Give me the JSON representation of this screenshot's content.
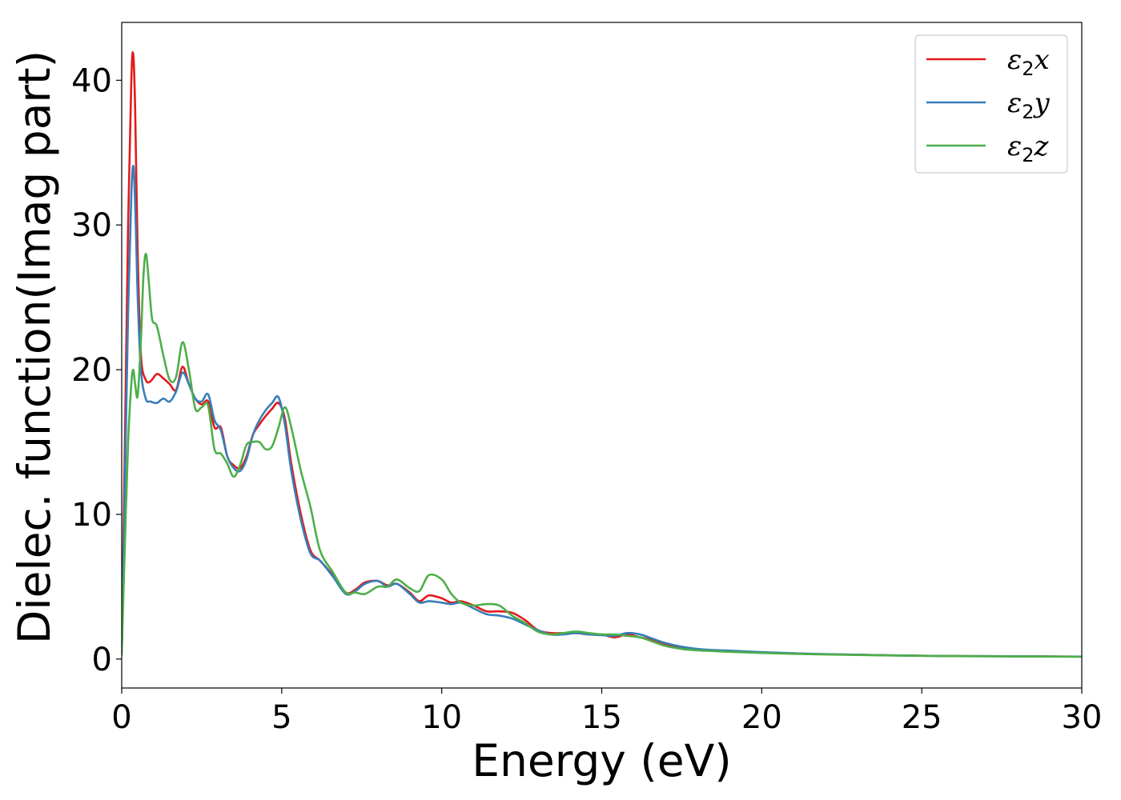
{
  "chart_data": {
    "type": "line",
    "title": "",
    "xlabel": "Energy (eV)",
    "ylabel": "Dielec. function(Imag part)",
    "xlim": [
      0,
      30
    ],
    "ylim": [
      -2,
      44
    ],
    "xticks": [
      0,
      5,
      10,
      15,
      20,
      25,
      30
    ],
    "yticks": [
      0,
      10,
      20,
      30,
      40
    ],
    "grid": false,
    "legend_position": "top-right",
    "series": [
      {
        "name": "ε2x",
        "legend": {
          "base": "ε",
          "sub": "2",
          "var": "x"
        },
        "color": "#e41a1c",
        "x": [
          0.0,
          0.1,
          0.2,
          0.3,
          0.36,
          0.42,
          0.5,
          0.6,
          0.75,
          0.9,
          1.1,
          1.3,
          1.5,
          1.7,
          1.9,
          2.1,
          2.3,
          2.5,
          2.7,
          2.9,
          3.1,
          3.3,
          3.5,
          3.7,
          3.9,
          4.1,
          4.3,
          4.5,
          4.7,
          4.9,
          5.1,
          5.3,
          5.6,
          5.9,
          6.2,
          6.6,
          7.0,
          7.3,
          7.6,
          8.0,
          8.3,
          8.6,
          9.0,
          9.3,
          9.6,
          10.0,
          10.3,
          10.6,
          11.0,
          11.4,
          11.8,
          12.2,
          12.6,
          13.0,
          13.4,
          13.8,
          14.2,
          14.6,
          15.0,
          15.4,
          15.8,
          16.2,
          16.6,
          17.0,
          17.5,
          18.0,
          18.5,
          19.0,
          20.0,
          21.0,
          22.0,
          23.0,
          24.0,
          25.0,
          26.0,
          27.0,
          28.0,
          29.0,
          30.0
        ],
        "y": [
          0.5,
          15.0,
          30.0,
          40.0,
          41.8,
          38.0,
          28.0,
          21.0,
          19.3,
          19.2,
          19.7,
          19.4,
          19.0,
          18.6,
          20.2,
          19.0,
          18.0,
          17.6,
          17.8,
          16.0,
          16.0,
          14.0,
          13.4,
          13.2,
          14.0,
          15.5,
          16.2,
          16.8,
          17.3,
          17.7,
          16.6,
          13.5,
          10.0,
          7.5,
          6.8,
          5.8,
          4.6,
          4.8,
          5.3,
          5.4,
          5.1,
          5.2,
          4.6,
          4.0,
          4.4,
          4.2,
          3.9,
          4.0,
          3.7,
          3.3,
          3.3,
          3.2,
          2.7,
          2.0,
          1.8,
          1.8,
          1.8,
          1.7,
          1.7,
          1.5,
          1.7,
          1.5,
          1.3,
          1.0,
          0.8,
          0.65,
          0.6,
          0.55,
          0.45,
          0.38,
          0.33,
          0.3,
          0.26,
          0.23,
          0.21,
          0.2,
          0.19,
          0.18,
          0.17
        ]
      },
      {
        "name": "ε2y",
        "legend": {
          "base": "ε",
          "sub": "2",
          "var": "y"
        },
        "color": "#377eb8",
        "x": [
          0.0,
          0.1,
          0.2,
          0.3,
          0.37,
          0.44,
          0.5,
          0.6,
          0.75,
          0.9,
          1.1,
          1.3,
          1.5,
          1.7,
          1.9,
          2.1,
          2.3,
          2.5,
          2.7,
          2.9,
          3.1,
          3.3,
          3.5,
          3.7,
          3.9,
          4.1,
          4.3,
          4.5,
          4.7,
          4.9,
          5.1,
          5.3,
          5.6,
          5.9,
          6.2,
          6.6,
          7.0,
          7.3,
          7.6,
          8.0,
          8.3,
          8.6,
          9.0,
          9.3,
          9.6,
          10.0,
          10.3,
          10.6,
          11.0,
          11.4,
          11.8,
          12.2,
          12.6,
          13.0,
          13.4,
          13.8,
          14.2,
          14.6,
          15.0,
          15.4,
          15.8,
          16.2,
          16.6,
          17.0,
          17.5,
          18.0,
          18.5,
          19.0,
          20.0,
          21.0,
          22.0,
          23.0,
          24.0,
          25.0,
          26.0,
          27.0,
          28.0,
          29.0,
          30.0
        ],
        "y": [
          0.5,
          12.0,
          24.0,
          32.0,
          34.0,
          30.0,
          25.0,
          20.0,
          18.0,
          17.8,
          17.7,
          18.0,
          17.8,
          18.5,
          19.8,
          19.0,
          18.0,
          17.8,
          18.3,
          16.5,
          15.8,
          14.0,
          13.2,
          13.0,
          13.8,
          15.5,
          16.5,
          17.2,
          17.7,
          18.1,
          16.2,
          13.0,
          9.6,
          7.3,
          6.8,
          5.7,
          4.5,
          4.7,
          5.2,
          5.4,
          5.0,
          5.2,
          4.5,
          3.9,
          4.0,
          3.9,
          3.8,
          3.9,
          3.5,
          3.1,
          3.0,
          2.8,
          2.4,
          2.0,
          1.7,
          1.7,
          1.8,
          1.7,
          1.65,
          1.6,
          1.8,
          1.7,
          1.4,
          1.1,
          0.85,
          0.7,
          0.62,
          0.58,
          0.48,
          0.4,
          0.34,
          0.3,
          0.26,
          0.23,
          0.21,
          0.2,
          0.19,
          0.18,
          0.17
        ]
      },
      {
        "name": "ε2z",
        "legend": {
          "base": "ε",
          "sub": "2",
          "var": "z"
        },
        "color": "#4daf4a",
        "x": [
          0.0,
          0.1,
          0.2,
          0.3,
          0.36,
          0.42,
          0.5,
          0.6,
          0.68,
          0.76,
          0.85,
          0.95,
          1.1,
          1.3,
          1.5,
          1.7,
          1.9,
          2.1,
          2.3,
          2.5,
          2.7,
          2.9,
          3.1,
          3.3,
          3.5,
          3.7,
          3.9,
          4.1,
          4.3,
          4.5,
          4.7,
          4.9,
          5.1,
          5.3,
          5.6,
          5.9,
          6.2,
          6.6,
          7.0,
          7.3,
          7.6,
          8.0,
          8.3,
          8.6,
          9.0,
          9.3,
          9.6,
          10.0,
          10.3,
          10.6,
          11.0,
          11.4,
          11.8,
          12.2,
          12.6,
          13.0,
          13.4,
          13.8,
          14.2,
          14.6,
          15.0,
          15.4,
          15.8,
          16.2,
          16.6,
          17.0,
          17.5,
          18.0,
          18.5,
          19.0,
          20.0,
          21.0,
          22.0,
          23.0,
          24.0,
          25.0,
          26.0,
          27.0,
          28.0,
          29.0,
          30.0
        ],
        "y": [
          0.3,
          8.0,
          15.0,
          19.0,
          20.0,
          19.0,
          18.2,
          22.0,
          26.5,
          28.0,
          26.0,
          23.5,
          23.0,
          21.0,
          19.3,
          19.5,
          21.9,
          20.0,
          17.3,
          17.4,
          17.5,
          14.5,
          14.2,
          13.5,
          12.6,
          13.4,
          14.8,
          15.0,
          15.0,
          14.5,
          14.7,
          16.0,
          17.4,
          16.0,
          13.0,
          10.5,
          7.5,
          6.0,
          4.6,
          4.6,
          4.5,
          5.0,
          5.0,
          5.5,
          4.9,
          4.7,
          5.8,
          5.5,
          4.5,
          3.9,
          3.7,
          3.8,
          3.7,
          3.0,
          2.5,
          1.9,
          1.7,
          1.8,
          1.9,
          1.8,
          1.7,
          1.7,
          1.6,
          1.5,
          1.2,
          0.9,
          0.7,
          0.6,
          0.55,
          0.5,
          0.42,
          0.36,
          0.32,
          0.28,
          0.25,
          0.22,
          0.2,
          0.19,
          0.18,
          0.17,
          0.16
        ]
      }
    ]
  }
}
